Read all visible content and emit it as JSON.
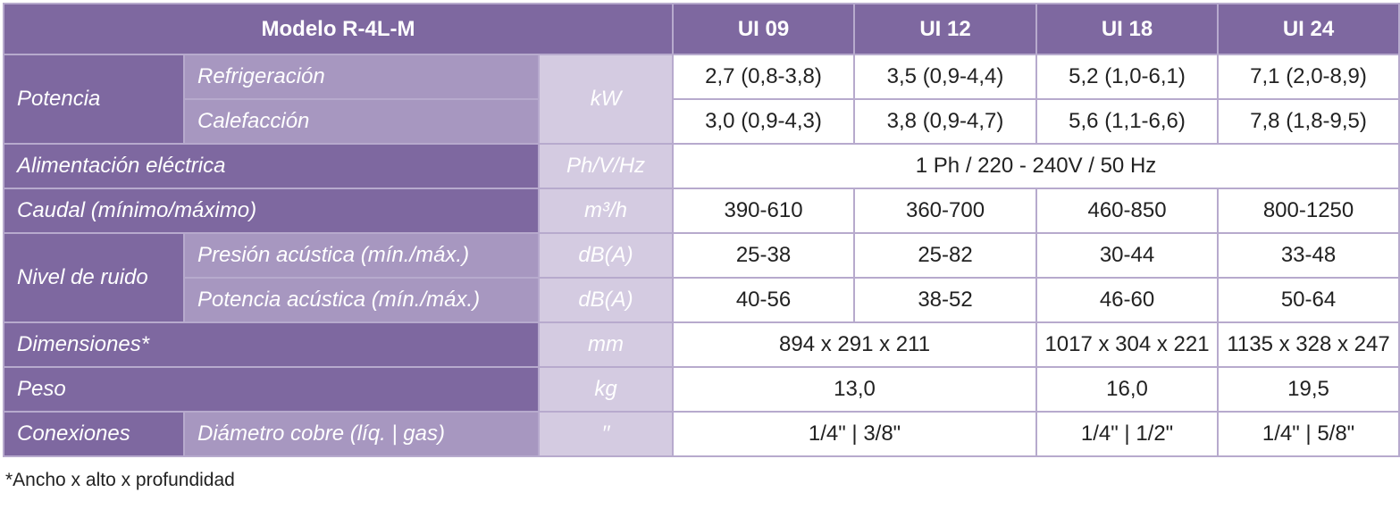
{
  "header": {
    "title": "Modelo R-4L-M",
    "models": [
      "UI 09",
      "UI 12",
      "UI 18",
      "UI 24"
    ]
  },
  "rows": [
    {
      "group": "Potencia",
      "label": "Refrigeración",
      "unit": "kW",
      "values": [
        "2,7 (0,8-3,8)",
        "3,5 (0,9-4,4)",
        "5,2 (1,0-6,1)",
        "7,1 (2,0-8,9)"
      ]
    },
    {
      "label": "Calefacción",
      "values": [
        "3,0 (0,9-4,3)",
        "3,8 (0,9-4,7)",
        "5,6 (1,1-6,6)",
        "7,8 (1,8-9,5)"
      ]
    },
    {
      "group": "Alimentación eléctrica",
      "unit": "Ph/V/Hz",
      "values": [
        "1 Ph / 220 - 240V / 50 Hz"
      ]
    },
    {
      "group": "Caudal (mínimo/máximo)",
      "unit": "m³/h",
      "values": [
        "390-610",
        "360-700",
        "460-850",
        "800-1250"
      ]
    },
    {
      "group": "Nivel de ruido",
      "label": "Presión acústica (mín./máx.)",
      "unit": "dB(A)",
      "values": [
        "25-38",
        "25-82",
        "30-44",
        "33-48"
      ]
    },
    {
      "label": "Potencia acústica (mín./máx.)",
      "unit": "dB(A)",
      "values": [
        "40-56",
        "38-52",
        "46-60",
        "50-64"
      ]
    },
    {
      "group": "Dimensiones*",
      "unit": "mm",
      "values": [
        "894 x 291 x 211",
        "1017 x 304 x 221",
        "1135 x 328 x 247"
      ]
    },
    {
      "group": "Peso",
      "unit": "kg",
      "values": [
        "13,0",
        "16,0",
        "19,5"
      ]
    },
    {
      "group": "Conexiones",
      "label": "Diámetro cobre (líq. | gas)",
      "unit": "′′",
      "values": [
        "1/4\" | 3/8\"",
        "1/4\" | 1/2\"",
        "1/4\" | 5/8\""
      ]
    }
  ],
  "footnote": "*Ancho x alto x profundidad"
}
